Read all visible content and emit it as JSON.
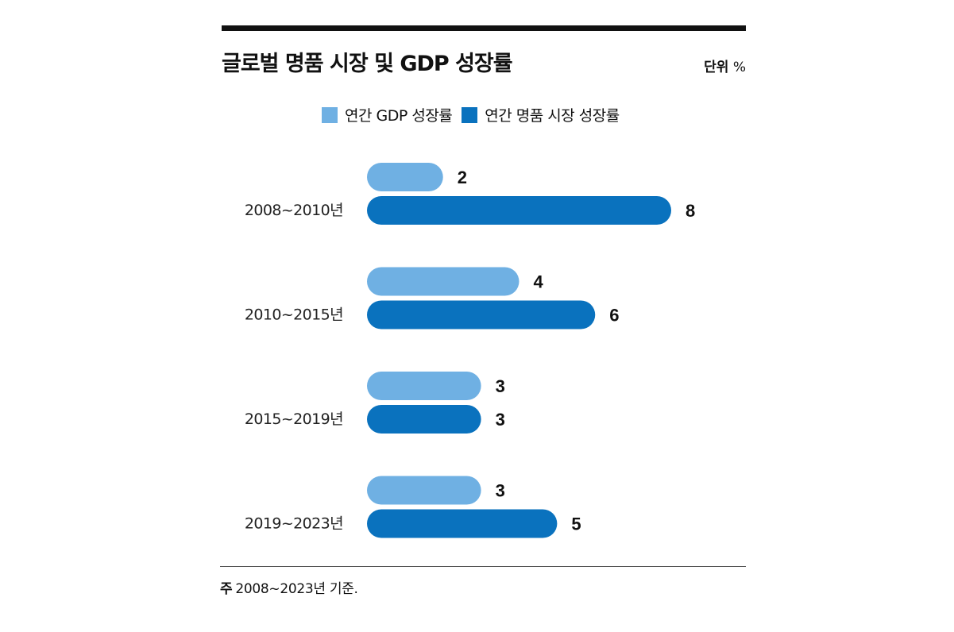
{
  "title": "글로벌 명품 시장 및 GDP 성장률",
  "unit": {
    "label": "단위",
    "symbol": "%"
  },
  "colors": {
    "gdp": "#6fb0e3",
    "luxury": "#0a72be"
  },
  "chart_data": {
    "type": "bar",
    "orientation": "horizontal",
    "categories": [
      "2008~2010년",
      "2010~2015년",
      "2015~2019년",
      "2019~2023년"
    ],
    "series": [
      {
        "name": "연간 GDP 성장률",
        "values": [
          2,
          4,
          3,
          3
        ],
        "color": "#6fb0e3"
      },
      {
        "name": "연간 명품 시장 성장률",
        "values": [
          8,
          6,
          3,
          5
        ],
        "color": "#0a72be"
      }
    ],
    "xlim": [
      0,
      8
    ],
    "grid": false,
    "data_labels": true,
    "legend_position": "top"
  },
  "note": {
    "mark": "주",
    "text": "2008~2023년 기준."
  }
}
